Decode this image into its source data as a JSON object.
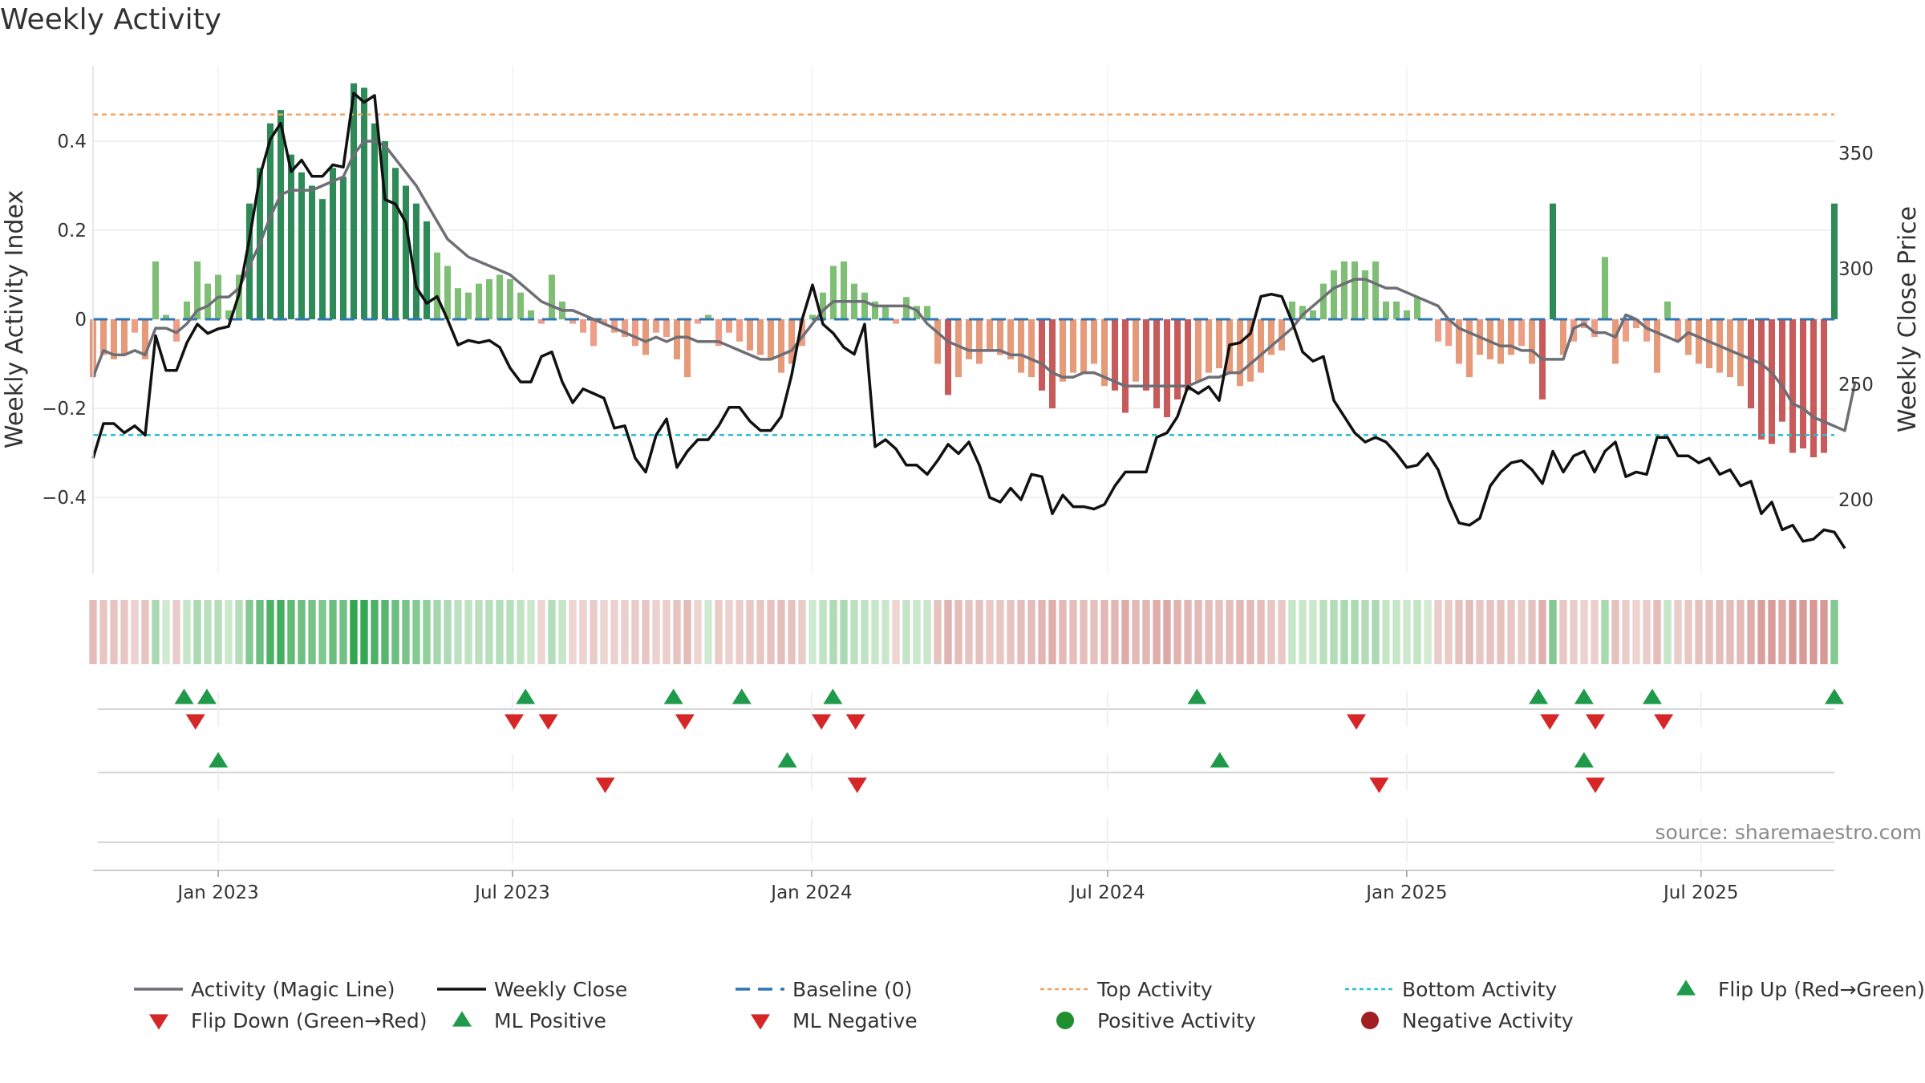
{
  "chart_data": {
    "type": "bar",
    "title": "Weekly Activity",
    "ylabel_left": "Weekly Activity Index",
    "ylabel_right": "Weekly Close Price",
    "source": "source: sharemaestro.com",
    "ylim_left": [
      -0.57,
      0.57
    ],
    "ylim_right": [
      171,
      393
    ],
    "yticks_left": [
      {
        "value": 0.4,
        "label": "0.4"
      },
      {
        "value": 0.2,
        "label": "0.2"
      },
      {
        "value": 0,
        "label": "0"
      },
      {
        "value": -0.2,
        "label": "−0.2"
      },
      {
        "value": -0.4,
        "label": "−0.4"
      }
    ],
    "yticks_right": [
      {
        "value": 350,
        "label": "350"
      },
      {
        "value": 300,
        "label": "300"
      },
      {
        "value": 250,
        "label": "250"
      },
      {
        "value": 200,
        "label": "200"
      }
    ],
    "x_start": "2022-10-16",
    "x_end": "2025-09-21",
    "xticks": [
      {
        "date": "2023-01-01",
        "label": "Jan 2023"
      },
      {
        "date": "2023-07-01",
        "label": "Jul 2023"
      },
      {
        "date": "2024-01-01",
        "label": "Jan 2024"
      },
      {
        "date": "2024-07-01",
        "label": "Jul 2024"
      },
      {
        "date": "2025-01-01",
        "label": "Jan 2025"
      },
      {
        "date": "2025-07-01",
        "label": "Jul 2025"
      }
    ],
    "thresholds": {
      "top": 0.46,
      "bottom": -0.26,
      "baseline": 0
    },
    "activity": [
      -0.13,
      -0.08,
      -0.09,
      -0.08,
      -0.03,
      -0.09,
      0.13,
      0.01,
      -0.05,
      0.04,
      0.13,
      0.08,
      0.1,
      0.02,
      0.1,
      0.26,
      0.34,
      0.44,
      0.47,
      0.37,
      0.33,
      0.3,
      0.27,
      0.34,
      0.32,
      0.53,
      0.52,
      0.44,
      0.4,
      0.34,
      0.3,
      0.26,
      0.22,
      0.15,
      0.12,
      0.07,
      0.06,
      0.08,
      0.09,
      0.1,
      0.09,
      0.06,
      0.02,
      -0.01,
      0.1,
      0.04,
      -0.01,
      -0.03,
      -0.06,
      -0.01,
      -0.03,
      -0.04,
      -0.06,
      -0.08,
      -0.03,
      -0.04,
      -0.09,
      -0.13,
      -0.01,
      0.01,
      -0.06,
      -0.03,
      -0.05,
      -0.07,
      -0.08,
      -0.09,
      -0.12,
      -0.1,
      -0.06,
      0.01,
      0.06,
      0.12,
      0.13,
      0.08,
      0.06,
      0.04,
      0.03,
      -0.01,
      0.05,
      0.03,
      0.03,
      -0.1,
      -0.17,
      -0.13,
      -0.09,
      -0.1,
      -0.07,
      -0.08,
      -0.09,
      -0.12,
      -0.13,
      -0.16,
      -0.2,
      -0.14,
      -0.12,
      -0.12,
      -0.1,
      -0.15,
      -0.16,
      -0.21,
      -0.14,
      -0.16,
      -0.2,
      -0.22,
      -0.18,
      -0.16,
      -0.14,
      -0.12,
      -0.11,
      -0.12,
      -0.15,
      -0.14,
      -0.12,
      -0.08,
      -0.07,
      0.04,
      0.03,
      0.02,
      0.08,
      0.11,
      0.13,
      0.13,
      0.11,
      0.13,
      0.04,
      0.04,
      0.02,
      0.05,
      0.0,
      -0.05,
      -0.06,
      -0.1,
      -0.13,
      -0.08,
      -0.09,
      -0.1,
      -0.08,
      -0.06,
      -0.1,
      -0.18,
      0.26,
      -0.08,
      -0.05,
      -0.02,
      -0.04,
      0.14,
      -0.1,
      -0.05,
      -0.02,
      -0.05,
      -0.12,
      0.04,
      -0.05,
      -0.08,
      -0.1,
      -0.11,
      -0.12,
      -0.13,
      -0.15,
      -0.2,
      -0.27,
      -0.28,
      -0.23,
      -0.3,
      -0.29,
      -0.31,
      -0.3,
      0.26
    ],
    "magic_line": [
      -0.13,
      -0.07,
      -0.08,
      -0.08,
      -0.07,
      -0.08,
      -0.02,
      -0.02,
      -0.03,
      -0.01,
      0.02,
      0.03,
      0.05,
      0.05,
      0.07,
      0.12,
      0.17,
      0.23,
      0.28,
      0.29,
      0.29,
      0.29,
      0.3,
      0.31,
      0.32,
      0.37,
      0.4,
      0.4,
      0.39,
      0.36,
      0.33,
      0.3,
      0.26,
      0.22,
      0.18,
      0.16,
      0.14,
      0.13,
      0.12,
      0.11,
      0.1,
      0.08,
      0.06,
      0.04,
      0.03,
      0.02,
      0.02,
      0.01,
      0.0,
      -0.01,
      -0.02,
      -0.03,
      -0.04,
      -0.05,
      -0.04,
      -0.05,
      -0.04,
      -0.04,
      -0.05,
      -0.05,
      -0.05,
      -0.06,
      -0.07,
      -0.08,
      -0.09,
      -0.09,
      -0.08,
      -0.07,
      -0.04,
      -0.01,
      0.02,
      0.04,
      0.04,
      0.04,
      0.04,
      0.03,
      0.03,
      0.03,
      0.03,
      0.02,
      -0.01,
      -0.03,
      -0.05,
      -0.06,
      -0.07,
      -0.07,
      -0.07,
      -0.07,
      -0.08,
      -0.08,
      -0.09,
      -0.1,
      -0.12,
      -0.13,
      -0.13,
      -0.12,
      -0.12,
      -0.13,
      -0.14,
      -0.15,
      -0.15,
      -0.15,
      -0.15,
      -0.15,
      -0.15,
      -0.15,
      -0.14,
      -0.13,
      -0.13,
      -0.12,
      -0.12,
      -0.1,
      -0.08,
      -0.06,
      -0.04,
      -0.02,
      0.01,
      0.03,
      0.05,
      0.07,
      0.08,
      0.09,
      0.09,
      0.08,
      0.07,
      0.07,
      0.06,
      0.05,
      0.04,
      0.03,
      0.0,
      -0.02,
      -0.03,
      -0.04,
      -0.05,
      -0.06,
      -0.06,
      -0.07,
      -0.07,
      -0.09,
      -0.09,
      -0.09,
      -0.02,
      -0.01,
      -0.03,
      -0.03,
      -0.04,
      0.01,
      0.0,
      -0.02,
      -0.03,
      -0.04,
      -0.05,
      -0.03,
      -0.04,
      -0.05,
      -0.06,
      -0.07,
      -0.08,
      -0.09,
      -0.1,
      -0.12,
      -0.15,
      -0.19,
      -0.2,
      -0.22,
      -0.23,
      -0.24,
      -0.25,
      -0.14
    ],
    "weekly_close": [
      218,
      233,
      233,
      229,
      232,
      228,
      271,
      256,
      256,
      268,
      276,
      272,
      274,
      275,
      289,
      313,
      340,
      356,
      363,
      342,
      347,
      340,
      340,
      345,
      344,
      376,
      372,
      375,
      330,
      328,
      320,
      292,
      285,
      288,
      278,
      267,
      269,
      268,
      269,
      266,
      257,
      251,
      251,
      262,
      264,
      251,
      242,
      248,
      246,
      244,
      231,
      232,
      218,
      212,
      228,
      235,
      214,
      221,
      226,
      226,
      232,
      240,
      240,
      234,
      230,
      230,
      236,
      254,
      278,
      293,
      276,
      272,
      266,
      263,
      276,
      223,
      226,
      222,
      215,
      215,
      211,
      217,
      224,
      220,
      225,
      215,
      201,
      199,
      205,
      200,
      211,
      210,
      194,
      202,
      197,
      197,
      196,
      198,
      206,
      212,
      212,
      212,
      227,
      229,
      236,
      249,
      246,
      249,
      243,
      267,
      268,
      272,
      288,
      289,
      288,
      277,
      264,
      260,
      262,
      243,
      236,
      229,
      225,
      227,
      225,
      220,
      214,
      215,
      220,
      213,
      200,
      190,
      189,
      192,
      206,
      212,
      216,
      217,
      213,
      207,
      221,
      212,
      219,
      221,
      212,
      221,
      225,
      210,
      212,
      211,
      227,
      227,
      219,
      219,
      216,
      218,
      211,
      213,
      206,
      208,
      194,
      199,
      187,
      189,
      182,
      183,
      187,
      186,
      179
    ],
    "heat_strip_note": "colour band tracks the activity index per week",
    "signal_rows": [
      {
        "name": "flip",
        "up": [
          "2022-12-11",
          "2022-12-25",
          "2023-07-09",
          "2023-10-08",
          "2023-11-19",
          "2024-01-14",
          "2024-08-25",
          "2025-03-23",
          "2025-04-20",
          "2025-06-01",
          "2025-09-21"
        ],
        "down": [
          "2022-12-18",
          "2023-07-02",
          "2023-07-23",
          "2023-10-15",
          "2024-01-07",
          "2024-01-28",
          "2024-12-01",
          "2025-03-30",
          "2025-04-27",
          "2025-06-08"
        ]
      },
      {
        "name": "ml",
        "up": [
          "2023-01-01",
          "2023-12-17",
          "2024-09-08",
          "2025-04-20"
        ],
        "down": [
          "2023-08-27",
          "2024-01-29",
          "2024-12-15",
          "2025-04-27"
        ]
      },
      {
        "name": "activity",
        "up": [],
        "down": []
      }
    ],
    "legend": [
      {
        "key": "magic",
        "label": "Activity (Magic Line)",
        "color": "#6e6e76"
      },
      {
        "key": "close",
        "label": "Weekly Close",
        "color": "#111111"
      },
      {
        "key": "baseline",
        "label": "Baseline (0)",
        "color": "#2f77b4"
      },
      {
        "key": "top",
        "label": "Top Activity",
        "color": "#f4a261"
      },
      {
        "key": "bottom",
        "label": "Bottom Activity",
        "color": "#27c0cf"
      },
      {
        "key": "flipup",
        "label": "Flip Up (Red→Green)",
        "color": "#1f9a4a"
      },
      {
        "key": "flipdown",
        "label": "Flip Down (Green→Red)",
        "color": "#d62728"
      },
      {
        "key": "mlpos",
        "label": "ML Positive",
        "color": "#1f9a4a"
      },
      {
        "key": "mlneg",
        "label": "ML Negative",
        "color": "#d62728"
      },
      {
        "key": "pos",
        "label": "Positive Activity",
        "color": "#1f8f2f"
      },
      {
        "key": "neg",
        "label": "Negative Activity",
        "color": "#a11f22"
      }
    ]
  }
}
